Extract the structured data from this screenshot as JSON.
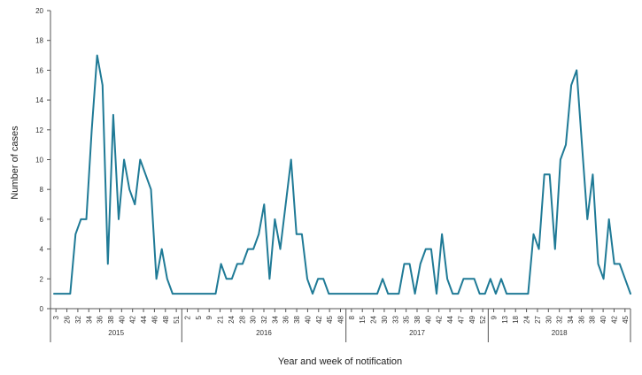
{
  "chart_data": {
    "type": "line",
    "title": "",
    "xlabel": "Year and week of notification",
    "ylabel": "Number of cases",
    "ylim": [
      0,
      20
    ],
    "yticks": [
      0,
      2,
      4,
      6,
      8,
      10,
      12,
      14,
      16,
      18,
      20
    ],
    "grid": false,
    "color": "#1f7a96",
    "years": [
      {
        "label": "2015",
        "ticks": [
          "3",
          "26",
          "32",
          "34",
          "36",
          "38",
          "40",
          "42",
          "44",
          "46",
          "48",
          "51"
        ]
      },
      {
        "label": "2016",
        "ticks": [
          "2",
          "5",
          "9",
          "21",
          "24",
          "28",
          "30",
          "32",
          "34",
          "36",
          "38",
          "40",
          "42",
          "45",
          "48"
        ]
      },
      {
        "label": "2017",
        "ticks": [
          "8",
          "15",
          "24",
          "30",
          "33",
          "35",
          "38",
          "40",
          "42",
          "44",
          "47",
          "49",
          "52"
        ]
      },
      {
        "label": "2018",
        "ticks": [
          "9",
          "13",
          "18",
          "24",
          "27",
          "30",
          "32",
          "34",
          "36",
          "38",
          "40",
          "42",
          "45"
        ]
      }
    ],
    "values": [
      1,
      1,
      1,
      1,
      5,
      6,
      6,
      12,
      17,
      15,
      3,
      13,
      6,
      10,
      8,
      7,
      10,
      9,
      8,
      2,
      4,
      2,
      1,
      1,
      1,
      1,
      1,
      1,
      1,
      1,
      1,
      3,
      2,
      2,
      3,
      3,
      4,
      4,
      5,
      7,
      2,
      6,
      4,
      7,
      10,
      5,
      5,
      2,
      1,
      2,
      2,
      1,
      1,
      1,
      1,
      1,
      1,
      1,
      1,
      1,
      1,
      2,
      1,
      1,
      1,
      3,
      3,
      1,
      3,
      4,
      4,
      1,
      5,
      2,
      1,
      1,
      2,
      2,
      2,
      1,
      1,
      2,
      1,
      2,
      1,
      1,
      1,
      1,
      1,
      5,
      4,
      9,
      9,
      4,
      10,
      11,
      15,
      16,
      11,
      6,
      9,
      3,
      2,
      6,
      3,
      3,
      2,
      1
    ]
  }
}
